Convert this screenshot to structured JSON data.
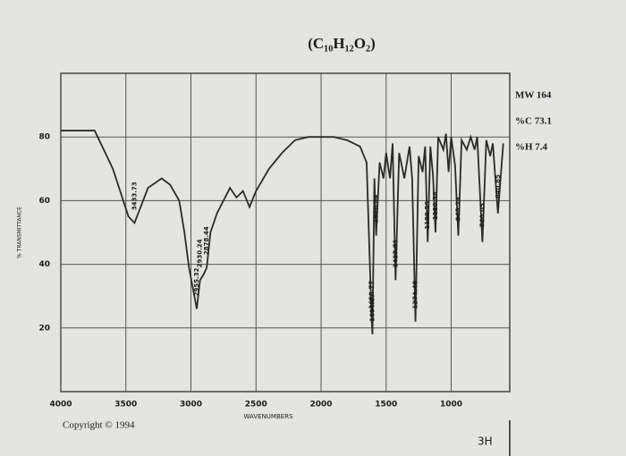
{
  "chart_data": {
    "type": "line",
    "title": "(C₁₀H₁₂O₂)",
    "x_label": "WAVENUMBERS",
    "y_label": "% TRANSMITTANCE",
    "notes": [
      "MW 164",
      "%C 73.1",
      "%H 7.4"
    ],
    "copyright": "Copyright © 1994",
    "page_mark": "3H",
    "xlim": [
      4000,
      550
    ],
    "xticks": [
      4000,
      3500,
      3000,
      2500,
      2000,
      1500,
      1000
    ],
    "ylim": [
      0,
      100
    ],
    "yticks": [
      20,
      40,
      60,
      80
    ],
    "grid": true,
    "x": [
      4000,
      3740,
      3600,
      3480,
      3433.73,
      3330,
      3225,
      3160,
      3090,
      3050,
      3015,
      2955.32,
      2930.24,
      2900,
      2878.44,
      2850,
      2800,
      2750,
      2700,
      2650,
      2600,
      2550,
      2500,
      2400,
      2300,
      2200,
      2100,
      2000,
      1900,
      1800,
      1750,
      1700,
      1650,
      1610.77,
      1604.87,
      1590,
      1576.84,
      1550,
      1520,
      1500,
      1470,
      1450,
      1427.51,
      1400,
      1360,
      1320,
      1300,
      1274.48,
      1250,
      1220,
      1200,
      1180.59,
      1160,
      1140,
      1120.58,
      1100,
      1060,
      1040,
      1020,
      1000,
      970,
      945.24,
      920,
      880,
      850,
      820,
      800,
      760.05,
      730,
      700,
      680,
      640.85,
      600
    ],
    "series": [
      {
        "color": "#2a2a2a",
        "values": [
          82,
          82,
          70,
          55,
          53,
          64,
          67,
          65,
          60,
          50,
          39,
          26,
          35,
          37,
          39,
          50,
          56,
          60,
          64,
          61,
          63,
          58,
          63,
          70,
          75,
          79,
          80,
          80,
          80,
          79,
          78,
          77,
          72,
          22,
          18,
          67,
          49,
          72,
          67,
          75,
          67,
          78,
          35,
          75,
          67,
          77,
          67,
          22,
          74,
          69,
          77,
          47,
          77,
          68,
          50,
          80,
          76,
          81,
          69,
          80,
          71,
          49,
          79,
          76,
          80,
          76,
          80,
          47,
          79,
          74,
          78,
          56,
          78
        ]
      }
    ],
    "peak_labels": [
      3433.73,
      2955.32,
      2930.24,
      2878.44,
      1610.77,
      1604.87,
      1576.84,
      1427.51,
      1274.48,
      1180.59,
      1120.58,
      945.24,
      760.05,
      640.85
    ]
  }
}
